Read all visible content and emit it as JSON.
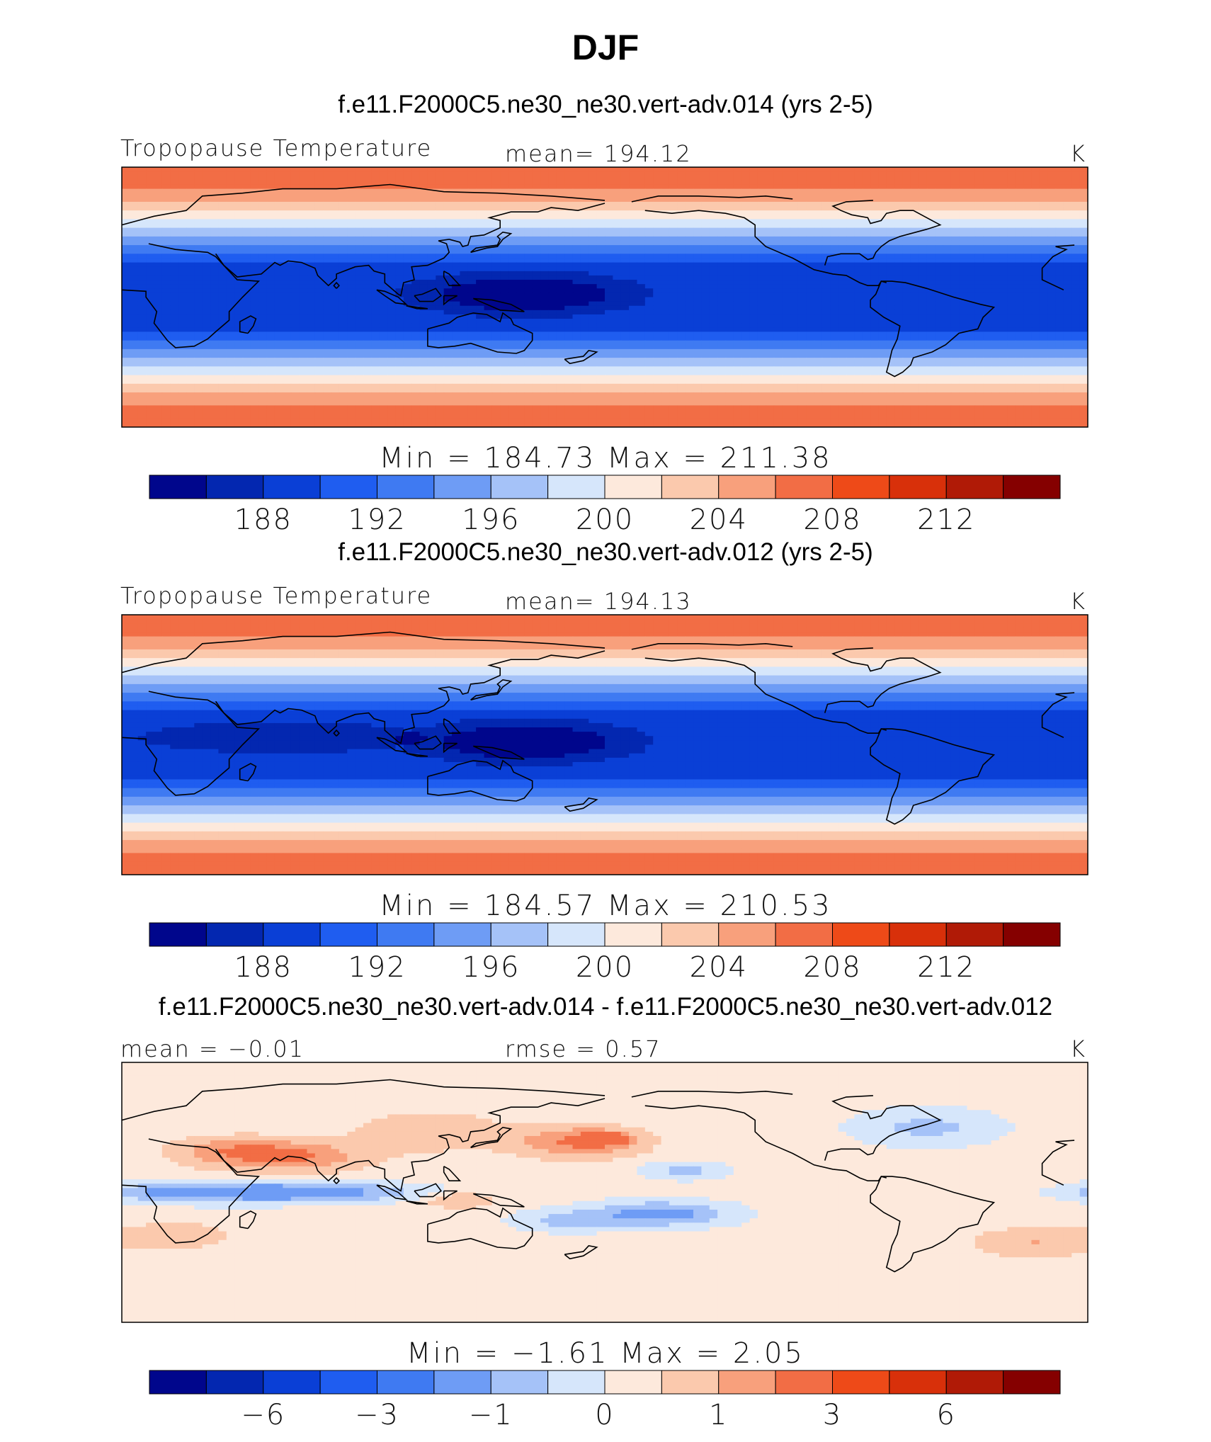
{
  "figure": {
    "title": "DJF"
  },
  "colors": {
    "palette": [
      "#00068c",
      "#0327b0",
      "#0a3fd6",
      "#1f5df0",
      "#3f7af2",
      "#6e9cf5",
      "#a5c2f8",
      "#d6e6fb",
      "#fde9dc",
      "#fbc9ad",
      "#f8a07c",
      "#f26d45",
      "#ee4a18",
      "#d8300a",
      "#b01a06",
      "#850000"
    ],
    "coast": "#000000"
  },
  "chart_data": [
    {
      "type": "heatmap",
      "title": "f.e11.F2000C5.ne30_ne30.vert-adv.014 (yrs 2-5)",
      "left_label": "Tropopause Temperature",
      "center_label": "mean=  194.12",
      "units": "K",
      "min_max": "Min  =  184.73  Max  =  211.38",
      "field_min": 184.73,
      "field_max": 211.38,
      "field_mean": 194.12,
      "colorbar_ticks": [
        "188",
        "192",
        "196",
        "200",
        "204",
        "208",
        "212"
      ],
      "colorbar_levels": [
        186,
        188,
        190,
        192,
        194,
        196,
        198,
        200,
        202,
        204,
        206,
        208,
        210,
        212,
        214
      ]
    },
    {
      "type": "heatmap",
      "title": "f.e11.F2000C5.ne30_ne30.vert-adv.012 (yrs 2-5)",
      "left_label": "Tropopause Temperature",
      "center_label": "mean=  194.13",
      "units": "K",
      "min_max": "Min  =  184.57  Max  =  210.53",
      "field_min": 184.57,
      "field_max": 210.53,
      "field_mean": 194.13,
      "colorbar_ticks": [
        "188",
        "192",
        "196",
        "200",
        "204",
        "208",
        "212"
      ],
      "colorbar_levels": [
        186,
        188,
        190,
        192,
        194,
        196,
        198,
        200,
        202,
        204,
        206,
        208,
        210,
        212,
        214
      ]
    },
    {
      "type": "heatmap",
      "title": "f.e11.F2000C5.ne30_ne30.vert-adv.014 - f.e11.F2000C5.ne30_ne30.vert-adv.012",
      "left_label": "mean  =    −0.01",
      "center_label": "rmse  =     0.57",
      "units": "K",
      "min_max": "Min  =     −1.61  Max  =     2.05",
      "field_min": -1.61,
      "field_max": 2.05,
      "field_mean": -0.01,
      "field_rmse": 0.57,
      "colorbar_ticks": [
        "−6",
        "−3",
        "−1",
        "0",
        "1",
        "3",
        "6"
      ]
    }
  ]
}
